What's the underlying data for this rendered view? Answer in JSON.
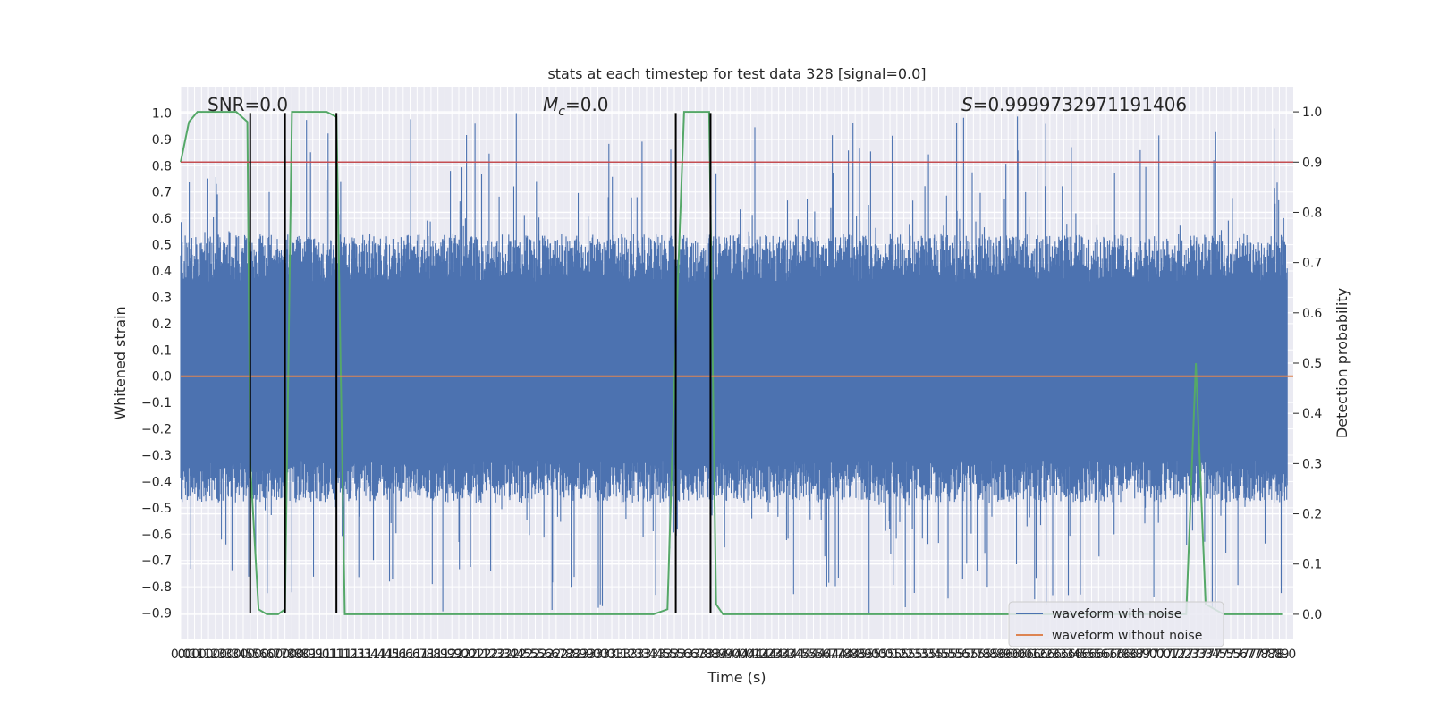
{
  "chart_data": {
    "type": "line",
    "title": "stats at each timestep for test data 328 [signal=0.0]",
    "xlabel": "Time (s)",
    "ylabel": "Whitened strain",
    "ylabel_right": "Detection probability",
    "xlim": [
      0.0,
      8.0
    ],
    "ylim": [
      -1.0,
      1.1
    ],
    "ylim_right": [
      -0.05,
      1.05
    ],
    "x_tick_step": 0.05,
    "y_ticks": [
      -0.9,
      -0.8,
      -0.7,
      -0.6,
      -0.5,
      -0.4,
      -0.3,
      -0.2,
      -0.1,
      0.0,
      0.1,
      0.2,
      0.3,
      0.4,
      0.5,
      0.6,
      0.7,
      0.8,
      0.9,
      1.0
    ],
    "y_ticks_right": [
      0.0,
      0.1,
      0.2,
      0.3,
      0.4,
      0.5,
      0.6,
      0.7,
      0.8,
      0.9,
      1.0
    ],
    "grid": true,
    "legend_position": "lower-right",
    "annotations": {
      "snr": "SNR=0.0",
      "mc_symbol": "M",
      "mc_sub": "c",
      "mc_value": "=0.0",
      "s_symbol": "S",
      "s_value": "=0.9999732971191406"
    },
    "series": [
      {
        "name": "waveform with noise",
        "color": "#4c72b0",
        "style": "dense-noise",
        "typical_range": [
          -0.4,
          0.45
        ],
        "extreme_range": [
          -0.9,
          1.0
        ]
      },
      {
        "name": "waveform without noise",
        "color": "#dd8452",
        "constant": 0.0
      }
    ],
    "detection_probability": {
      "color": "#55a868",
      "x": [
        0.0,
        0.06,
        0.12,
        0.25,
        0.4,
        0.48,
        0.5,
        0.56,
        0.62,
        0.7,
        0.75,
        0.8,
        0.9,
        1.05,
        1.12,
        1.18,
        1.6,
        2.5,
        3.4,
        3.5,
        3.56,
        3.62,
        3.7,
        3.8,
        3.85,
        3.9,
        4.5,
        5.5,
        6.5,
        7.1,
        7.23,
        7.3,
        7.37,
        7.5,
        7.8,
        7.92
      ],
      "y": [
        0.9,
        0.98,
        1.0,
        1.0,
        1.0,
        0.98,
        0.3,
        0.01,
        0.0,
        0.0,
        0.01,
        1.0,
        1.0,
        1.0,
        0.99,
        0.0,
        0.0,
        0.0,
        0.0,
        0.01,
        0.55,
        1.0,
        1.0,
        1.0,
        0.02,
        0.0,
        0.0,
        0.0,
        0.0,
        0.0,
        0.0,
        0.5,
        0.02,
        0.0,
        0.0,
        0.0
      ]
    },
    "threshold": {
      "color": "#c44e52",
      "value_right": 0.9
    },
    "trigger_lines": {
      "color": "#000000",
      "x": [
        0.5,
        0.75,
        1.12,
        3.56,
        3.81
      ],
      "y_range": [
        -0.9,
        1.0
      ]
    }
  }
}
